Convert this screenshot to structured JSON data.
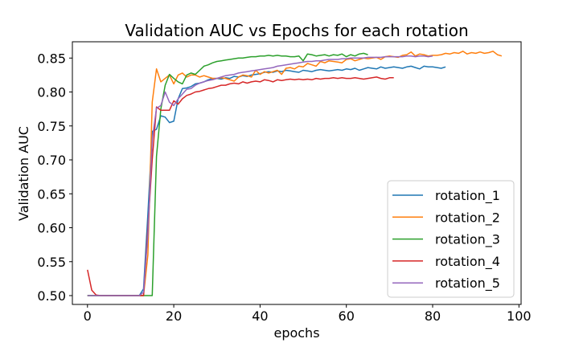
{
  "chart_data": {
    "type": "line",
    "title": "Validation AUC vs Epochs for each rotation",
    "xlabel": "epochs",
    "ylabel": "Validation AUC",
    "xlim": [
      -3.5,
      100.5
    ],
    "ylim": [
      0.487,
      0.874
    ],
    "xticks": [
      0,
      20,
      40,
      60,
      80,
      100
    ],
    "yticks": [
      0.5,
      0.55,
      0.6,
      0.65,
      0.7,
      0.75,
      0.8,
      0.85
    ],
    "xtick_labels": [
      "0",
      "20",
      "40",
      "60",
      "80",
      "100"
    ],
    "ytick_labels": [
      "0.50",
      "0.55",
      "0.60",
      "0.65",
      "0.70",
      "0.75",
      "0.80",
      "0.85"
    ],
    "grid": false,
    "legend_position": "lower-right",
    "series": [
      {
        "name": "rotation_1",
        "color": "#1f77b4",
        "x": [
          0,
          1,
          2,
          3,
          4,
          5,
          6,
          7,
          8,
          9,
          10,
          11,
          12,
          13,
          14,
          15,
          16,
          17,
          18,
          19,
          20,
          21,
          22,
          23,
          24,
          25,
          26,
          27,
          28,
          29,
          30,
          31,
          32,
          33,
          34,
          35,
          36,
          37,
          38,
          39,
          40,
          41,
          42,
          43,
          44,
          45,
          46,
          47,
          48,
          49,
          50,
          51,
          52,
          53,
          54,
          55,
          56,
          57,
          58,
          59,
          60,
          61,
          62,
          63,
          64,
          65,
          66,
          67,
          68,
          69,
          70,
          71,
          72,
          73,
          74,
          75,
          76,
          77,
          78,
          79,
          80,
          81,
          82,
          83
        ],
        "y": [
          0.5,
          0.5,
          0.5,
          0.5,
          0.5,
          0.5,
          0.5,
          0.5,
          0.5,
          0.5,
          0.5,
          0.5,
          0.5,
          0.51,
          0.62,
          0.742,
          0.745,
          0.765,
          0.763,
          0.755,
          0.757,
          0.79,
          0.805,
          0.806,
          0.808,
          0.812,
          0.813,
          0.815,
          0.818,
          0.82,
          0.82,
          0.819,
          0.821,
          0.82,
          0.823,
          0.822,
          0.824,
          0.823,
          0.825,
          0.826,
          0.827,
          0.829,
          0.83,
          0.829,
          0.831,
          0.83,
          0.832,
          0.831,
          0.83,
          0.829,
          0.832,
          0.831,
          0.83,
          0.832,
          0.833,
          0.832,
          0.831,
          0.832,
          0.833,
          0.832,
          0.834,
          0.833,
          0.835,
          0.832,
          0.834,
          0.836,
          0.835,
          0.834,
          0.837,
          0.835,
          0.836,
          0.837,
          0.836,
          0.835,
          0.837,
          0.838,
          0.836,
          0.834,
          0.838,
          0.837,
          0.837,
          0.836,
          0.835,
          0.837
        ]
      },
      {
        "name": "rotation_2",
        "color": "#ff7f0e",
        "x": [
          0,
          1,
          2,
          3,
          4,
          5,
          6,
          7,
          8,
          9,
          10,
          11,
          12,
          13,
          14,
          15,
          16,
          17,
          18,
          19,
          20,
          21,
          22,
          23,
          24,
          25,
          26,
          27,
          28,
          29,
          30,
          31,
          32,
          33,
          34,
          35,
          36,
          37,
          38,
          39,
          40,
          41,
          42,
          43,
          44,
          45,
          46,
          47,
          48,
          49,
          50,
          51,
          52,
          53,
          54,
          55,
          56,
          57,
          58,
          59,
          60,
          61,
          62,
          63,
          64,
          65,
          66,
          67,
          68,
          69,
          70,
          71,
          72,
          73,
          74,
          75,
          76,
          77,
          78,
          79,
          80,
          81,
          82,
          83,
          84,
          85,
          86,
          87,
          88,
          89,
          90,
          91,
          92,
          93,
          94,
          95,
          96
        ],
        "y": [
          0.5,
          0.5,
          0.5,
          0.5,
          0.5,
          0.5,
          0.5,
          0.5,
          0.5,
          0.5,
          0.5,
          0.5,
          0.5,
          0.5,
          0.56,
          0.785,
          0.834,
          0.815,
          0.82,
          0.825,
          0.812,
          0.825,
          0.828,
          0.822,
          0.825,
          0.825,
          0.822,
          0.824,
          0.822,
          0.82,
          0.82,
          0.821,
          0.82,
          0.818,
          0.816,
          0.822,
          0.825,
          0.824,
          0.822,
          0.832,
          0.826,
          0.83,
          0.828,
          0.83,
          0.832,
          0.826,
          0.835,
          0.836,
          0.834,
          0.838,
          0.837,
          0.842,
          0.84,
          0.838,
          0.845,
          0.843,
          0.846,
          0.845,
          0.844,
          0.843,
          0.848,
          0.849,
          0.846,
          0.848,
          0.85,
          0.849,
          0.85,
          0.851,
          0.848,
          0.852,
          0.853,
          0.852,
          0.851,
          0.854,
          0.855,
          0.859,
          0.853,
          0.856,
          0.855,
          0.853,
          0.854,
          0.854,
          0.855,
          0.857,
          0.856,
          0.858,
          0.857,
          0.86,
          0.856,
          0.858,
          0.857,
          0.859,
          0.857,
          0.858,
          0.86,
          0.855,
          0.853
        ]
      },
      {
        "name": "rotation_3",
        "color": "#2ca02c",
        "x": [
          0,
          1,
          2,
          3,
          4,
          5,
          6,
          7,
          8,
          9,
          10,
          11,
          12,
          13,
          14,
          15,
          16,
          17,
          18,
          19,
          20,
          21,
          22,
          23,
          24,
          25,
          26,
          27,
          28,
          29,
          30,
          31,
          32,
          33,
          34,
          35,
          36,
          37,
          38,
          39,
          40,
          41,
          42,
          43,
          44,
          45,
          46,
          47,
          48,
          49,
          50,
          51,
          52,
          53,
          54,
          55,
          56,
          57,
          58,
          59,
          60,
          61,
          62,
          63,
          64,
          65
        ],
        "y": [
          0.5,
          0.5,
          0.5,
          0.5,
          0.5,
          0.5,
          0.5,
          0.5,
          0.5,
          0.5,
          0.5,
          0.5,
          0.5,
          0.5,
          0.5,
          0.5,
          0.705,
          0.775,
          0.81,
          0.826,
          0.82,
          0.815,
          0.812,
          0.825,
          0.828,
          0.826,
          0.832,
          0.838,
          0.84,
          0.843,
          0.845,
          0.846,
          0.847,
          0.848,
          0.849,
          0.85,
          0.85,
          0.851,
          0.852,
          0.852,
          0.853,
          0.853,
          0.854,
          0.853,
          0.854,
          0.853,
          0.853,
          0.852,
          0.852,
          0.853,
          0.846,
          0.856,
          0.855,
          0.853,
          0.854,
          0.855,
          0.853,
          0.855,
          0.854,
          0.856,
          0.852,
          0.855,
          0.853,
          0.856,
          0.857,
          0.855
        ]
      },
      {
        "name": "rotation_4",
        "color": "#d62728",
        "x": [
          0,
          1,
          2,
          3,
          4,
          5,
          6,
          7,
          8,
          9,
          10,
          11,
          12,
          13,
          14,
          15,
          16,
          17,
          18,
          19,
          20,
          21,
          22,
          23,
          24,
          25,
          26,
          27,
          28,
          29,
          30,
          31,
          32,
          33,
          34,
          35,
          36,
          37,
          38,
          39,
          40,
          41,
          42,
          43,
          44,
          45,
          46,
          47,
          48,
          49,
          50,
          51,
          52,
          53,
          54,
          55,
          56,
          57,
          58,
          59,
          60,
          61,
          62,
          63,
          64,
          65,
          66,
          67,
          68,
          69,
          70,
          71
        ],
        "y": [
          0.538,
          0.508,
          0.501,
          0.5,
          0.5,
          0.5,
          0.5,
          0.5,
          0.5,
          0.5,
          0.5,
          0.5,
          0.5,
          0.5,
          0.6,
          0.7,
          0.778,
          0.773,
          0.773,
          0.773,
          0.787,
          0.782,
          0.79,
          0.795,
          0.797,
          0.8,
          0.801,
          0.803,
          0.805,
          0.806,
          0.808,
          0.81,
          0.81,
          0.812,
          0.813,
          0.812,
          0.815,
          0.813,
          0.815,
          0.816,
          0.815,
          0.818,
          0.817,
          0.815,
          0.818,
          0.817,
          0.818,
          0.819,
          0.818,
          0.819,
          0.818,
          0.819,
          0.818,
          0.82,
          0.819,
          0.82,
          0.82,
          0.821,
          0.82,
          0.821,
          0.82,
          0.82,
          0.821,
          0.82,
          0.819,
          0.82,
          0.821,
          0.822,
          0.82,
          0.819,
          0.821,
          0.821
        ]
      },
      {
        "name": "rotation_5",
        "color": "#9467bd",
        "x": [
          0,
          1,
          2,
          3,
          4,
          5,
          6,
          7,
          8,
          9,
          10,
          11,
          12,
          13,
          14,
          15,
          16,
          17,
          18,
          19,
          20,
          21,
          22,
          23,
          24,
          25,
          26,
          27,
          28,
          29,
          30,
          31,
          32,
          33,
          34,
          35,
          36,
          37,
          38,
          39,
          40,
          41,
          42,
          43,
          44,
          45,
          46,
          47,
          48,
          49,
          50,
          51,
          52,
          53,
          54,
          55,
          56,
          57,
          58,
          59,
          60,
          61,
          62,
          63,
          64,
          65,
          66,
          67,
          68,
          69,
          70,
          71,
          72,
          73,
          74,
          75,
          76,
          77,
          78,
          79,
          80
        ],
        "y": [
          0.5,
          0.5,
          0.5,
          0.5,
          0.5,
          0.5,
          0.5,
          0.5,
          0.5,
          0.5,
          0.5,
          0.5,
          0.5,
          0.505,
          0.59,
          0.73,
          0.776,
          0.78,
          0.8,
          0.785,
          0.78,
          0.79,
          0.797,
          0.804,
          0.805,
          0.81,
          0.813,
          0.815,
          0.817,
          0.818,
          0.82,
          0.822,
          0.824,
          0.825,
          0.826,
          0.828,
          0.829,
          0.83,
          0.831,
          0.832,
          0.833,
          0.834,
          0.835,
          0.836,
          0.838,
          0.839,
          0.84,
          0.841,
          0.842,
          0.843,
          0.844,
          0.845,
          0.845,
          0.846,
          0.846,
          0.847,
          0.848,
          0.848,
          0.848,
          0.849,
          0.849,
          0.85,
          0.85,
          0.85,
          0.85,
          0.851,
          0.851,
          0.851,
          0.851,
          0.852,
          0.852,
          0.852,
          0.852,
          0.852,
          0.853,
          0.853,
          0.852,
          0.853,
          0.853,
          0.852,
          0.853
        ]
      }
    ]
  }
}
